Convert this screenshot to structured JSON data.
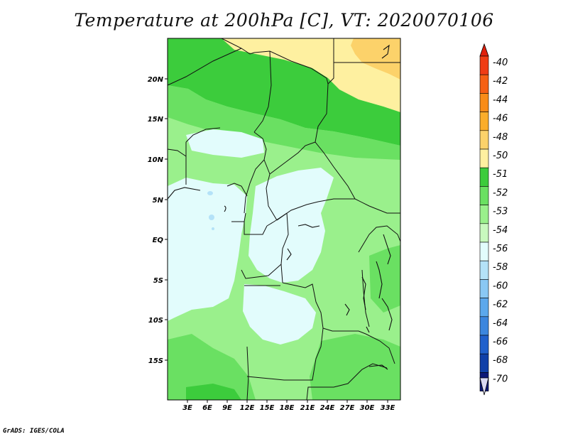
{
  "title": "Temperature at 200hPa [C], VT: 2020070106",
  "footer": "GrADS: IGES/COLA",
  "lat_labels": [
    "20N",
    "15N",
    "10N",
    "5N",
    "EQ",
    "5S",
    "10S",
    "15S"
  ],
  "lon_labels": [
    "3E",
    "6E",
    "9E",
    "12E",
    "15E",
    "18E",
    "21E",
    "24E",
    "27E",
    "30E",
    "33E"
  ],
  "colorbar": {
    "labels": [
      "-40",
      "-42",
      "-44",
      "-46",
      "-48",
      "-50",
      "-51",
      "-52",
      "-53",
      "-54",
      "-56",
      "-58",
      "-60",
      "-62",
      "-64",
      "-66",
      "-68",
      "-70"
    ],
    "colors": [
      "#f03c14",
      "#f66014",
      "#f88c18",
      "#fbad2a",
      "#fcd26a",
      "#fef0a0",
      "#3ccc3c",
      "#6ae062",
      "#9af08c",
      "#c8f8be",
      "#e2fcfc",
      "#b4e2f8",
      "#8ac8f4",
      "#5ca8ec",
      "#3c86de",
      "#2060cc",
      "#1040a8",
      "#0c1878"
    ],
    "top_color": "#e0200c",
    "bottom_color": "#d8d8f4"
  }
}
